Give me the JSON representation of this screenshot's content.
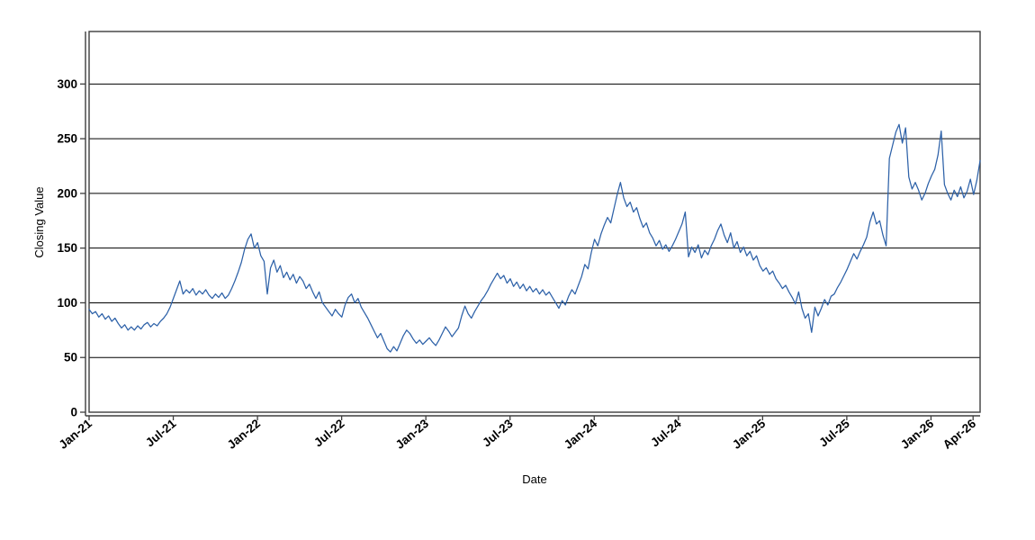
{
  "page": {
    "background": "#ffffff",
    "description_title": ""
  },
  "chart_data": {
    "type": "line",
    "title": "",
    "xlabel": "Date",
    "ylabel": "Closing Value",
    "legend": "none",
    "grid": {
      "horizontal": true,
      "vertical": false,
      "color": "#000000"
    },
    "frame_color": "#3d3d3d",
    "line_color": "#2d61a8",
    "x_domain_months": 63.5,
    "x_tick_months": [
      0,
      6,
      12,
      18,
      24,
      30,
      36,
      42,
      48,
      54,
      60,
      63
    ],
    "x_tick_labels": [
      "Jan-21",
      "Jul-21",
      "Jan-22",
      "Jul-22",
      "Jan-23",
      "Jul-23",
      "Jan-24",
      "Jul-24",
      "Jan-25",
      "Jul-25",
      "Jan-26",
      "Apr-26"
    ],
    "y_ticks": [
      0,
      50,
      100,
      150,
      200,
      250,
      300
    ],
    "y_tick_labels": [
      "0",
      "50",
      "100",
      "150",
      "200",
      "250",
      "300"
    ],
    "ylim": [
      0,
      348
    ],
    "series": [
      {
        "name": "Closing Value",
        "sampling": "approx weekly values read from plot, Jan-2021 through mid-Apr-2026",
        "values": [
          94,
          90,
          92,
          87,
          90,
          85,
          88,
          83,
          86,
          81,
          77,
          80,
          75,
          78,
          75,
          79,
          76,
          80,
          82,
          78,
          81,
          79,
          83,
          86,
          90,
          96,
          104,
          112,
          120,
          108,
          112,
          109,
          113,
          107,
          111,
          108,
          112,
          107,
          104,
          108,
          105,
          109,
          104,
          107,
          113,
          120,
          128,
          137,
          149,
          158,
          163,
          150,
          155,
          143,
          138,
          108,
          132,
          139,
          128,
          134,
          123,
          128,
          121,
          126,
          118,
          124,
          120,
          113,
          117,
          110,
          104,
          110,
          100,
          96,
          92,
          88,
          94,
          90,
          87,
          98,
          105,
          108,
          100,
          104,
          96,
          91,
          86,
          80,
          74,
          68,
          72,
          65,
          58,
          55,
          60,
          56,
          63,
          70,
          75,
          72,
          67,
          63,
          66,
          62,
          65,
          68,
          64,
          61,
          66,
          72,
          78,
          74,
          69,
          73,
          77,
          88,
          97,
          90,
          86,
          92,
          97,
          102,
          106,
          111,
          117,
          122,
          127,
          122,
          125,
          118,
          122,
          115,
          119,
          113,
          117,
          111,
          115,
          110,
          113,
          108,
          112,
          107,
          110,
          105,
          100,
          95,
          102,
          98,
          106,
          112,
          108,
          116,
          124,
          135,
          131,
          146,
          158,
          152,
          163,
          171,
          178,
          173,
          186,
          199,
          210,
          196,
          188,
          192,
          183,
          187,
          177,
          169,
          173,
          164,
          159,
          152,
          157,
          149,
          153,
          147,
          152,
          158,
          165,
          172,
          183,
          142,
          151,
          146,
          153,
          141,
          148,
          144,
          152,
          158,
          166,
          172,
          162,
          155,
          164,
          150,
          156,
          146,
          151,
          143,
          147,
          139,
          143,
          134,
          129,
          132,
          126,
          129,
          122,
          118,
          113,
          116,
          110,
          105,
          99,
          110,
          95,
          86,
          90,
          73,
          96,
          88,
          95,
          103,
          98,
          106,
          108,
          114,
          119,
          125,
          131,
          138,
          145,
          140,
          147,
          153,
          160,
          174,
          183,
          172,
          175,
          162,
          152,
          232,
          244,
          256,
          263,
          246,
          260,
          215,
          204,
          210,
          203,
          194,
          200,
          209,
          216,
          222,
          235,
          257,
          208,
          200,
          194,
          203,
          197,
          206,
          196,
          202,
          213,
          199,
          212,
          230
        ]
      }
    ]
  }
}
